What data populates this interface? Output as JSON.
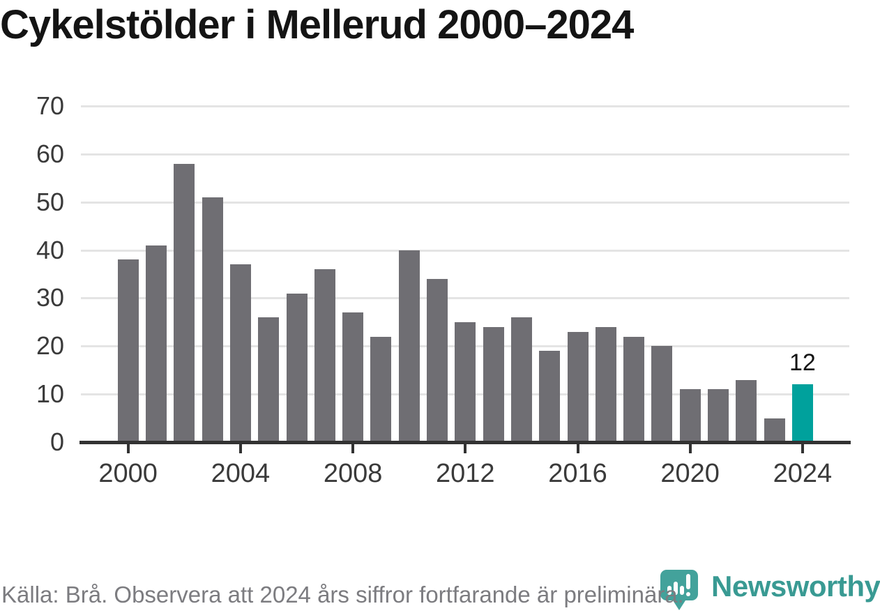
{
  "title": "Cykelstölder i Mellerud 2000–2024",
  "footer": {
    "source_note": "Källa: Brå. Observera att 2024 års siffror fortfarande är preliminära.",
    "brand_name": "Newsworthy"
  },
  "colors": {
    "bar": "#6f6e73",
    "highlight": "#00a19c",
    "grid": "#e4e4e4",
    "axis": "#323232",
    "tick_label": "#3a3a3a",
    "brand_teal": "#399a93",
    "logo_teal": "#43a29b"
  },
  "chart_data": {
    "type": "bar",
    "title": "Cykelstölder i Mellerud 2000–2024",
    "xlabel": "",
    "ylabel": "",
    "categories": [
      2000,
      2001,
      2002,
      2003,
      2004,
      2005,
      2006,
      2007,
      2008,
      2009,
      2010,
      2011,
      2012,
      2013,
      2014,
      2015,
      2016,
      2017,
      2018,
      2019,
      2020,
      2021,
      2022,
      2023,
      2024
    ],
    "values": [
      38,
      41,
      58,
      51,
      37,
      26,
      31,
      36,
      27,
      22,
      40,
      34,
      25,
      24,
      26,
      19,
      23,
      24,
      22,
      20,
      11,
      11,
      13,
      5,
      12
    ],
    "highlight_category": 2024,
    "highlight_value_label": "12",
    "ylim": [
      0,
      70
    ],
    "yticks": [
      0,
      10,
      20,
      30,
      40,
      50,
      60,
      70
    ],
    "xticks": [
      2000,
      2004,
      2008,
      2012,
      2016,
      2020,
      2024
    ],
    "grid": "horizontal",
    "legend": "none"
  }
}
